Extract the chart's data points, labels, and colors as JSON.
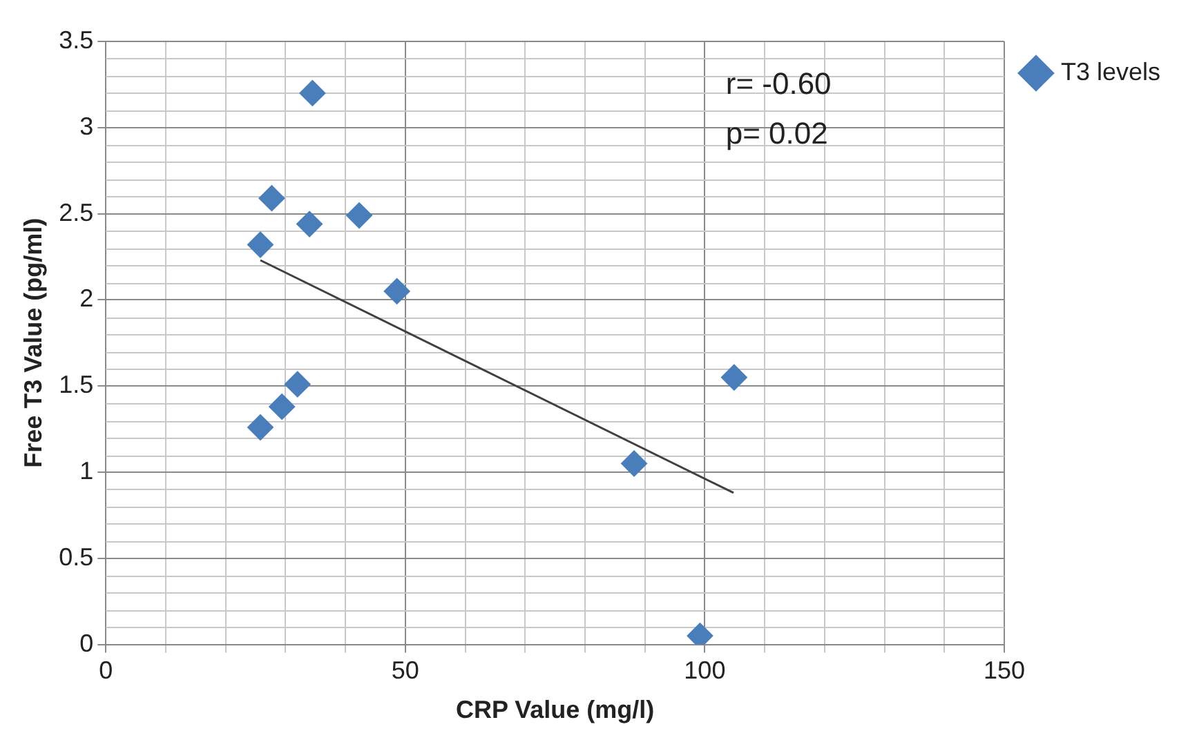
{
  "chart_data": {
    "type": "scatter",
    "xlabel": "CRP Value (mg/l)",
    "ylabel": "Free T3 Value (pg/ml)",
    "xlim": [
      0,
      150
    ],
    "ylim": [
      0,
      3.5
    ],
    "xticks": [
      0,
      {
        "value": 10,
        "label": null
      },
      {
        "value": 20,
        "label": null
      },
      {
        "value": 30,
        "label": null
      },
      {
        "value": 40,
        "label": null
      },
      50,
      {
        "value": 60,
        "label": null
      },
      {
        "value": 70,
        "label": null
      },
      {
        "value": 80,
        "label": null
      },
      {
        "value": 90,
        "label": null
      },
      100,
      {
        "value": 110,
        "label": null
      },
      {
        "value": 120,
        "label": null
      },
      {
        "value": 130,
        "label": null
      },
      {
        "value": 140,
        "label": null
      },
      150
    ],
    "yticks": [
      0,
      0.5,
      1,
      1.5,
      2,
      2.5,
      3,
      3.5
    ],
    "grid": true,
    "legend": "top right",
    "marker": "diamond",
    "annotations": [
      "r= -0.60",
      "p= 0.02"
    ],
    "series": [
      {
        "name": "T3 levels",
        "color": "#4a7ebb",
        "x": [
          34.5,
          27.7,
          34,
          42.3,
          25.8,
          48.6,
          32,
          29.4,
          25.8,
          88.2,
          104.9,
          99.2
        ],
        "values": [
          3.2,
          2.59,
          2.44,
          2.49,
          2.32,
          2.05,
          1.51,
          1.38,
          1.26,
          1.05,
          1.55,
          0.05
        ]
      },
      {
        "type": "line",
        "color": "#404040",
        "marker": "none",
        "line_style": "solid",
        "x": [
          25.8,
          104.8
        ],
        "values": [
          2.23,
          0.88
        ]
      }
    ]
  }
}
